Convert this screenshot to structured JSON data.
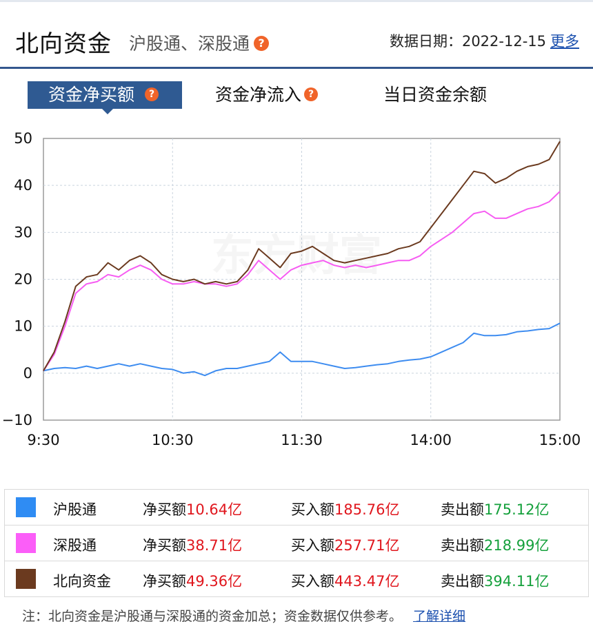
{
  "header": {
    "title": "北向资金",
    "subtitle": "沪股通、深股通",
    "date_label": "数据日期：",
    "date_value": "2022-12-15",
    "more": "更多"
  },
  "tabs": [
    {
      "label": "资金净买额",
      "active": true
    },
    {
      "label": "资金净流入",
      "active": false
    },
    {
      "label": "当日资金余额",
      "active": false
    }
  ],
  "chart_data": {
    "type": "line",
    "title": "",
    "xlabel": "",
    "ylabel": "",
    "ylim": [
      -10,
      50
    ],
    "yticks": [
      -10,
      0,
      10,
      20,
      30,
      40,
      50
    ],
    "xticks": [
      "9:30",
      "10:30",
      "11:30",
      "14:00",
      "15:00"
    ],
    "grid": true,
    "watermark": "东方财富",
    "x": [
      "9:30",
      "9:35",
      "9:40",
      "9:45",
      "9:50",
      "9:55",
      "10:00",
      "10:05",
      "10:10",
      "10:15",
      "10:20",
      "10:25",
      "10:30",
      "10:35",
      "10:40",
      "10:45",
      "10:50",
      "10:55",
      "11:00",
      "11:05",
      "11:10",
      "11:15",
      "11:20",
      "11:25",
      "11:30",
      "13:05",
      "13:10",
      "13:15",
      "13:20",
      "13:25",
      "13:30",
      "13:35",
      "13:40",
      "13:45",
      "13:50",
      "13:55",
      "14:00",
      "14:05",
      "14:10",
      "14:15",
      "14:20",
      "14:25",
      "14:30",
      "14:35",
      "14:40",
      "14:45",
      "14:50",
      "14:55",
      "15:00"
    ],
    "series": [
      {
        "name": "沪股通",
        "color": "#3d8cf0",
        "values": [
          0.5,
          1.0,
          1.2,
          1.0,
          1.5,
          1.0,
          1.5,
          2.0,
          1.5,
          2.0,
          1.5,
          1.0,
          0.8,
          0.0,
          0.3,
          -0.5,
          0.5,
          1.0,
          1.0,
          1.5,
          2.0,
          2.5,
          4.5,
          2.5,
          2.5,
          2.5,
          2.0,
          1.5,
          1.0,
          1.2,
          1.5,
          1.8,
          2.0,
          2.5,
          2.8,
          3.0,
          3.5,
          4.5,
          5.5,
          6.5,
          8.5,
          8.0,
          8.0,
          8.2,
          8.8,
          9.0,
          9.3,
          9.5,
          10.64
        ]
      },
      {
        "name": "深股通",
        "color": "#f65cf2",
        "values": [
          0.5,
          4.0,
          10.0,
          17.0,
          19.0,
          19.5,
          21.0,
          20.5,
          22.0,
          23.0,
          22.0,
          20.0,
          19.0,
          19.0,
          19.5,
          19.0,
          19.0,
          18.5,
          19.0,
          21.0,
          24.0,
          22.0,
          20.0,
          22.0,
          23.0,
          23.5,
          24.0,
          23.0,
          22.5,
          23.0,
          22.5,
          23.0,
          23.5,
          24.0,
          24.0,
          25.0,
          27.0,
          28.5,
          30.0,
          32.0,
          34.0,
          34.5,
          33.0,
          33.0,
          34.0,
          35.0,
          35.5,
          36.5,
          38.71
        ]
      },
      {
        "name": "北向资金",
        "color": "#6b3a1f",
        "values": [
          0.5,
          4.5,
          11.0,
          18.5,
          20.5,
          21.0,
          23.5,
          22.0,
          24.0,
          25.0,
          23.5,
          21.0,
          20.0,
          19.5,
          20.0,
          19.0,
          19.5,
          19.0,
          19.5,
          22.0,
          26.5,
          24.5,
          22.5,
          25.5,
          26.0,
          27.0,
          25.5,
          24.0,
          23.5,
          24.0,
          24.5,
          25.0,
          25.5,
          26.5,
          27.0,
          28.0,
          31.0,
          34.0,
          37.0,
          40.0,
          43.0,
          42.5,
          40.5,
          41.5,
          43.0,
          44.0,
          44.5,
          45.5,
          49.36
        ]
      }
    ]
  },
  "legend": [
    {
      "name": "沪股通",
      "color": "#2f8cf3",
      "net_label": "净买额",
      "net": "10.64亿",
      "buy_label": "买入额",
      "buy": "185.76亿",
      "sell_label": "卖出额",
      "sell": "175.12亿"
    },
    {
      "name": "深股通",
      "color": "#fb5ef8",
      "net_label": "净买额",
      "net": "38.71亿",
      "buy_label": "买入额",
      "buy": "257.71亿",
      "sell_label": "卖出额",
      "sell": "218.99亿"
    },
    {
      "name": "北向资金",
      "color": "#6b3a1f",
      "net_label": "净买额",
      "net": "49.36亿",
      "buy_label": "买入额",
      "buy": "443.47亿",
      "sell_label": "卖出额",
      "sell": "394.11亿"
    }
  ],
  "note": {
    "text": "注：北向资金是沪股通与深股通的资金加总；资金数据仅供参考。",
    "link": "了解详细"
  },
  "icons": {
    "help": "question-mark-icon"
  }
}
